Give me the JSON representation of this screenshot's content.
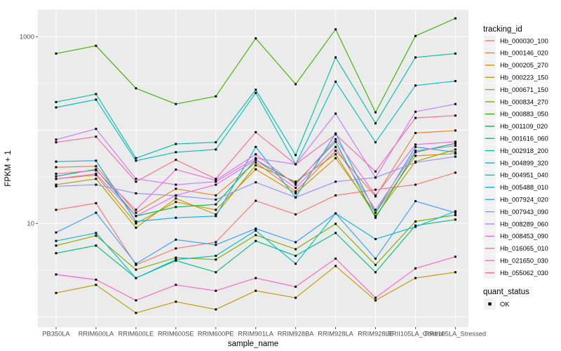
{
  "chart_data": {
    "type": "line",
    "title": "",
    "xlabel": "sample_name",
    "ylabel": "FPKM + 1",
    "y_scale": "log10",
    "y_ticks": [
      {
        "value": 10,
        "label": "10"
      },
      {
        "value": 1000,
        "label": "1000"
      }
    ],
    "y_minor_gridlines": [
      3.162,
      31.62,
      316.2
    ],
    "y_major_gridlines": [
      1,
      10,
      100,
      1000
    ],
    "ylim": [
      0.8,
      1940
    ],
    "grid": "on",
    "legend_position": "right",
    "legend_title": "tracking_id",
    "legend2_title": "quant_status",
    "legend2_items": [
      {
        "label": "OK",
        "marker": "black-square"
      }
    ],
    "marker": "black-square",
    "categories": [
      "PB350LA",
      "RRIM600LA",
      "RRIM600LE",
      "RRIM600SE",
      "RRIM600PE",
      "RRIM901LA",
      "RRIM928BA",
      "RRIM928LA",
      "RRIM928LE",
      "RRII105LA_Control",
      "RRII105LA_Stressed"
    ],
    "series": [
      {
        "name": "Hb_000030_100",
        "color": "#F8766D",
        "values": [
          14,
          16.5,
          3.6,
          5.4,
          6.3,
          17.5,
          12.5,
          20,
          23,
          26,
          35
        ]
      },
      {
        "name": "Hb_000146_020",
        "color": "#EA8331",
        "values": [
          40,
          41,
          13,
          23.5,
          20,
          45,
          22,
          60,
          19.5,
          93,
          99
        ]
      },
      {
        "name": "Hb_000205_270",
        "color": "#D89000",
        "values": [
          30,
          33,
          10,
          17,
          14,
          38,
          21,
          50,
          13,
          53,
          56
        ]
      },
      {
        "name": "Hb_000223_150",
        "color": "#C09B00",
        "values": [
          1.8,
          2.2,
          1.1,
          1.45,
          1.2,
          1.9,
          1.6,
          3.5,
          1.5,
          2.6,
          3.0
        ]
      },
      {
        "name": "Hb_000671_150",
        "color": "#A3A500",
        "values": [
          26,
          30,
          9,
          18.5,
          12.5,
          42,
          28,
          55,
          12,
          46,
          62
        ]
      },
      {
        "name": "Hb_000834_270",
        "color": "#7CAE00",
        "values": [
          5.8,
          7.4,
          3.2,
          4.3,
          4.1,
          7.5,
          5.3,
          9.9,
          3.6,
          10.5,
          12.3
        ]
      },
      {
        "name": "Hb_000883_050",
        "color": "#39B600",
        "values": [
          660,
          800,
          280,
          190,
          230,
          960,
          310,
          1200,
          155,
          1020,
          1570
        ]
      },
      {
        "name": "Hb_001109_020",
        "color": "#00BB4E",
        "values": [
          32,
          38,
          12,
          15,
          16,
          48,
          27,
          75,
          11.5,
          58,
          72
        ]
      },
      {
        "name": "Hb_001616_060",
        "color": "#00BF7D",
        "values": [
          4.8,
          5.8,
          2.6,
          4.0,
          3.0,
          6.5,
          4.5,
          7.9,
          3.0,
          9.5,
          11
        ]
      },
      {
        "name": "Hb_002918_200",
        "color": "#00C1A3",
        "values": [
          200,
          243,
          50,
          71,
          74,
          270,
          54,
          600,
          118,
          600,
          660
        ]
      },
      {
        "name": "Hb_004899_320",
        "color": "#00BFC4",
        "values": [
          175,
          212,
          47,
          58,
          62,
          250,
          43,
          330,
          74,
          300,
          335
        ]
      },
      {
        "name": "Hb_004951_040",
        "color": "#00BBDA",
        "values": [
          6.5,
          7.9,
          2.6,
          4.1,
          4.5,
          8.4,
          3.7,
          12.8,
          6.8,
          9.2,
          13.5
        ]
      },
      {
        "name": "Hb_005488_010",
        "color": "#00B0F6",
        "values": [
          46,
          47,
          10.5,
          11.5,
          12,
          66,
          19,
          92,
          13,
          66,
          58
        ]
      },
      {
        "name": "Hb_007924_020",
        "color": "#35A2FF",
        "values": [
          8.0,
          13,
          3.7,
          6.7,
          5.9,
          8.8,
          6.3,
          12.8,
          4.2,
          17.3,
          13
        ]
      },
      {
        "name": "Hb_007943_090",
        "color": "#9590FF",
        "values": [
          25,
          26,
          21,
          19.8,
          18,
          27.6,
          19,
          28,
          31,
          45,
          52
        ]
      },
      {
        "name": "Hb_008289_060",
        "color": "#C77CFF",
        "values": [
          79,
          103,
          30,
          26,
          28,
          50,
          43,
          150,
          31,
          157,
          190
        ]
      },
      {
        "name": "Hb_008453_090",
        "color": "#E76BF3",
        "values": [
          30,
          34,
          12,
          20,
          26,
          48,
          24,
          66,
          14,
          60,
          68
        ]
      },
      {
        "name": "Hb_016065_010",
        "color": "#FA62DB",
        "values": [
          34,
          37,
          14,
          37.7,
          29,
          55,
          26,
          80,
          20,
          70,
          75
        ]
      },
      {
        "name": "Hb_021650_030",
        "color": "#FF61CC",
        "values": [
          2.84,
          2.5,
          1.5,
          2.2,
          1.9,
          2.6,
          2.1,
          4.2,
          1.6,
          3.3,
          4.4
        ]
      },
      {
        "name": "Hb_055062_030",
        "color": "#FF67A4",
        "values": [
          74,
          85,
          28,
          48,
          30,
          95,
          43,
          90,
          36,
          135,
          143
        ]
      }
    ]
  },
  "style": {
    "panel_bg": "#EBEBEB",
    "grid_color": "#FFFFFF",
    "point_color": "#000000",
    "tick_color": "#333333",
    "tick_label_color": "#4D4D4D",
    "axis_title_color": "#000000",
    "legend_key_bg": "#F2F2F2",
    "legend_text_color": "#000000"
  }
}
